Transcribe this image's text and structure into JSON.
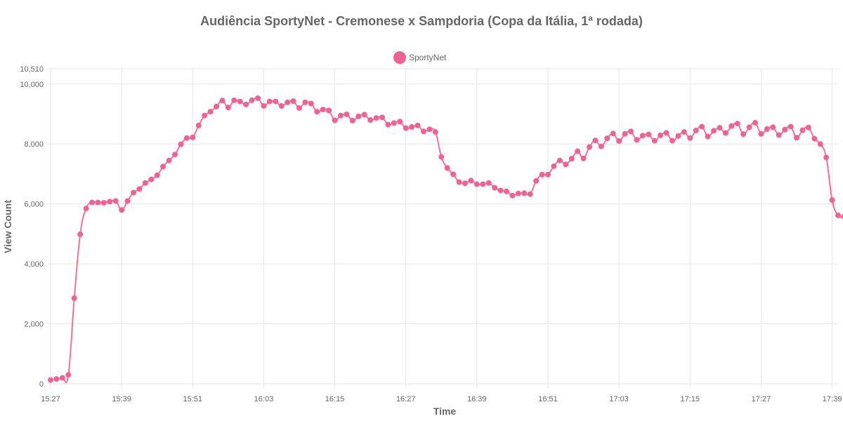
{
  "chart_data": {
    "type": "line",
    "title": "Audiência SportyNet - Cremonese x Sampdoria (Copa da Itália, 1ª rodada)",
    "xlabel": "Time",
    "ylabel": "View Count",
    "legend": {
      "position": "top-center",
      "entries": [
        "SportyNet"
      ]
    },
    "grid": true,
    "x_start": "15:27",
    "x_step_minutes": 1,
    "xlim": [
      "15:27",
      "17:40"
    ],
    "x_ticks": [
      "15:27",
      "15:39",
      "15:51",
      "16:03",
      "16:15",
      "16:27",
      "16:39",
      "16:51",
      "17:03",
      "17:15",
      "17:27",
      "17:39"
    ],
    "ylim": [
      0,
      10510
    ],
    "y_ticks": [
      "0",
      "2,000",
      "4,000",
      "6,000",
      "8,000",
      "10,000",
      "10,510"
    ],
    "y_tick_values": [
      0,
      2000,
      4000,
      6000,
      8000,
      10000,
      10510
    ],
    "colors": {
      "series": "#f67196",
      "marker": "#f06292"
    },
    "series": [
      {
        "name": "SportyNet",
        "values": [
          130,
          160,
          200,
          300,
          2860,
          4990,
          5850,
          6050,
          6050,
          6040,
          6080,
          6100,
          5800,
          6100,
          6380,
          6500,
          6700,
          6820,
          6960,
          7250,
          7450,
          7650,
          7990,
          8200,
          8220,
          8620,
          8950,
          9080,
          9250,
          9450,
          9220,
          9460,
          9420,
          9320,
          9460,
          9530,
          9270,
          9420,
          9420,
          9270,
          9390,
          9430,
          9200,
          9390,
          9350,
          9080,
          9150,
          9120,
          8790,
          8950,
          8990,
          8780,
          8920,
          8980,
          8800,
          8870,
          8890,
          8650,
          8700,
          8750,
          8530,
          8570,
          8620,
          8420,
          8490,
          8400,
          7570,
          7200,
          6990,
          6730,
          6690,
          6780,
          6660,
          6660,
          6700,
          6540,
          6450,
          6420,
          6280,
          6350,
          6360,
          6330,
          6770,
          6980,
          6980,
          7260,
          7450,
          7320,
          7510,
          7760,
          7520,
          7900,
          8120,
          7920,
          8190,
          8350,
          8100,
          8340,
          8420,
          8140,
          8280,
          8320,
          8110,
          8290,
          8370,
          8110,
          8270,
          8400,
          8200,
          8450,
          8580,
          8250,
          8440,
          8540,
          8370,
          8600,
          8680,
          8330,
          8560,
          8710,
          8340,
          8500,
          8560,
          8300,
          8480,
          8580,
          8210,
          8460,
          8550,
          8180,
          8000,
          7550,
          6130,
          5620,
          5580
        ]
      }
    ]
  }
}
